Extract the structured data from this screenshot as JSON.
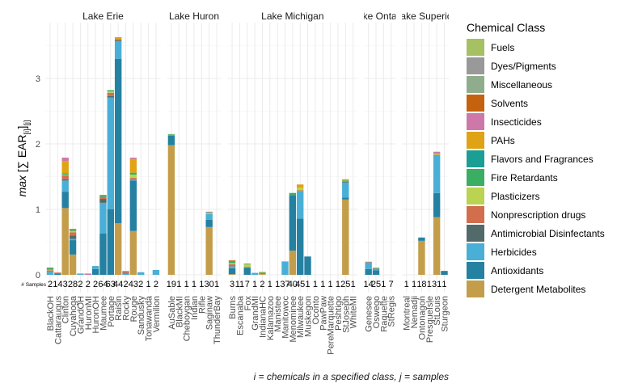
{
  "chart_data": {
    "type": "bar",
    "stacked": true,
    "faceted_by": "lake",
    "title": "",
    "ylabel_parts": {
      "prefix": "max",
      "open": " [∑ EAR",
      "sub_i": "[i]",
      "close": "]",
      "sub_j": "[j]"
    },
    "xlabel": "i = chemicals in a specified class, j = samples",
    "samples_label": "# Samples",
    "ylim": [
      -0.27,
      3.85
    ],
    "yticks": [
      0,
      1,
      2,
      3
    ],
    "grid": true,
    "legend": {
      "title": "Chemical Class",
      "position": "right",
      "entries": [
        {
          "name": "Fuels",
          "color": "#a6c064"
        },
        {
          "name": "Dyes/Pigments",
          "color": "#999999"
        },
        {
          "name": "Miscellaneous",
          "color": "#8fad8d"
        },
        {
          "name": "Solvents",
          "color": "#c5620f"
        },
        {
          "name": "Insecticides",
          "color": "#cd78a8"
        },
        {
          "name": "PAHs",
          "color": "#e0a315"
        },
        {
          "name": "Flavors and Fragrances",
          "color": "#1b9e94"
        },
        {
          "name": "Fire Retardants",
          "color": "#3aae63"
        },
        {
          "name": "Plasticizers",
          "color": "#bad351"
        },
        {
          "name": "Nonprescription drugs",
          "color": "#d26e4e"
        },
        {
          "name": "Antimicrobial Disinfectants",
          "color": "#536a6b"
        },
        {
          "name": "Herbicides",
          "color": "#4aafd7"
        },
        {
          "name": "Antioxidants",
          "color": "#2581a1"
        },
        {
          "name": "Detergent Metabolites",
          "color": "#c49d4b"
        }
      ]
    },
    "facets": [
      {
        "name": "Lake Erie",
        "sites": [
          {
            "site": "BlackOH",
            "samples": "2",
            "values": {
              "Herbicides": 0.045,
              "Nonprescription drugs": 0.025,
              "Plasticizers": 0.01,
              "Fire Retardants": 0.03
            }
          },
          {
            "site": "Cattaraugus",
            "samples": "14",
            "values": {
              "Antioxidants": 0.02,
              "Nonprescription drugs": 0.015
            }
          },
          {
            "site": "Clinton",
            "samples": "3",
            "values": {
              "Detergent Metabolites": 1.02,
              "Antioxidants": 0.25,
              "Herbicides": 0.17,
              "Antimicrobial Disinfectants": 0.02,
              "Nonprescription drugs": 0.06,
              "Plasticizers": 0.01,
              "Fire Retardants": 0.02,
              "PAHs": 0.19,
              "Insecticides": 0.05
            }
          },
          {
            "site": "Cuyahoga",
            "samples": "28",
            "values": {
              "Detergent Metabolites": 0.31,
              "Antioxidants": 0.22,
              "Herbicides": 0.02,
              "Antimicrobial Disinfectants": 0.05,
              "Nonprescription drugs": 0.05,
              "Plasticizers": 0.02,
              "Fire Retardants": 0.015,
              "Solvents": 0.015
            }
          },
          {
            "site": "GrandOH",
            "samples": "2",
            "values": {
              "Herbicides": 0.02
            }
          },
          {
            "site": "HuronMI",
            "samples": "2",
            "values": {
              "Insecticides": 0.02
            }
          },
          {
            "site": "HuronOH",
            "samples": "2",
            "values": {
              "Antioxidants": 0.09,
              "Herbicides": 0.045
            }
          },
          {
            "site": "Maumee",
            "samples": "64",
            "values": {
              "Antioxidants": 0.63,
              "Herbicides": 0.47,
              "Antimicrobial Disinfectants": 0.06,
              "Nonprescription drugs": 0.03,
              "Fire Retardants": 0.03
            }
          },
          {
            "site": "Portage",
            "samples": "63",
            "values": {
              "Antioxidants": 1.0,
              "Herbicides": 1.71,
              "Antimicrobial Disinfectants": 0.02,
              "Nonprescription drugs": 0.05,
              "Plasticizers": 0.02,
              "Fire Retardants": 0.02
            }
          },
          {
            "site": "Raisin",
            "samples": "44",
            "values": {
              "Detergent Metabolites": 0.79,
              "Antioxidants": 2.51,
              "Herbicides": 0.27,
              "Antimicrobial Disinfectants": 0.015,
              "Nonprescription drugs": 0.015,
              "PAHs": 0.03
            }
          },
          {
            "site": "Rocky",
            "samples": "2",
            "values": {
              "Herbicides": 0.02,
              "Antimicrobial Disinfectants": 0.01,
              "Nonprescription drugs": 0.015,
              "Insecticides": 0.015
            }
          },
          {
            "site": "Rouge",
            "samples": "43",
            "values": {
              "Detergent Metabolites": 0.67,
              "Antioxidants": 0.77,
              "Herbicides": 0.01,
              "Nonprescription drugs": 0.03,
              "Plasticizers": 0.05,
              "Fire Retardants": 0.03,
              "PAHs": 0.21,
              "Insecticides": 0.02
            }
          },
          {
            "site": "Sandusky",
            "samples": "2",
            "values": {
              "Herbicides": 0.04
            }
          },
          {
            "site": "Tonawanda",
            "samples": "1",
            "values": {}
          },
          {
            "site": "Vermilion",
            "samples": "2",
            "values": {
              "Herbicides": 0.075
            }
          }
        ]
      },
      {
        "name": "Lake Huron",
        "sites": [
          {
            "site": "AuSable",
            "samples": "19",
            "values": {
              "Detergent Metabolites": 1.98,
              "Antioxidants": 0.15,
              "Plasticizers": 0.01,
              "Fire Retardants": 0.01
            }
          },
          {
            "site": "BlackMI",
            "samples": "1",
            "values": {}
          },
          {
            "site": "Cheboygan",
            "samples": "1",
            "values": {}
          },
          {
            "site": "Indian",
            "samples": "1",
            "values": {}
          },
          {
            "site": "Rifle",
            "samples": "1",
            "values": {}
          },
          {
            "site": "Saginaw",
            "samples": "30",
            "values": {
              "Detergent Metabolites": 0.73,
              "Antioxidants": 0.11,
              "Herbicides": 0.09,
              "Plasticizers": 0.015,
              "Fire Retardants": 0.01,
              "Insecticides": 0.01
            }
          },
          {
            "site": "ThunderBay",
            "samples": "1",
            "values": {}
          }
        ]
      },
      {
        "name": "Lake Michigan",
        "sites": [
          {
            "site": "Burns",
            "samples": "3",
            "values": {
              "Detergent Metabolites": 0.01,
              "Antioxidants": 0.09,
              "Herbicides": 0.03,
              "Nonprescription drugs": 0.03,
              "Plasticizers": 0.02,
              "Fire Retardants": 0.02,
              "Solvents": 0.02
            }
          },
          {
            "site": "Escanaba",
            "samples": "11",
            "values": {}
          },
          {
            "site": "Fox",
            "samples": "7",
            "values": {
              "Antioxidants": 0.11,
              "Nonprescription drugs": 0.01,
              "Plasticizers": 0.04,
              "Flavors and Fragrances": 0.01
            }
          },
          {
            "site": "GrandMI",
            "samples": "1",
            "values": {
              "Herbicides": 0.03
            }
          },
          {
            "site": "IndianaHC",
            "samples": "2",
            "values": {
              "Detergent Metabolites": 0.01,
              "Nonprescription drugs": 0.015,
              "Fire Retardants": 0.01,
              "PAHs": 0.01
            }
          },
          {
            "site": "Kalamazoo",
            "samples": "1",
            "values": {}
          },
          {
            "site": "Manistee",
            "samples": "1",
            "values": {}
          },
          {
            "site": "Manitowoc",
            "samples": "37",
            "values": {
              "Herbicides": 0.2,
              "Plasticizers": 0.01
            }
          },
          {
            "site": "Menominee",
            "samples": "40",
            "values": {
              "Detergent Metabolites": 0.37,
              "Antioxidants": 0.84,
              "Fire Retardants": 0.03,
              "Flavors and Fragrances": 0.01
            }
          },
          {
            "site": "Milwaukee",
            "samples": "45",
            "values": {
              "Antioxidants": 0.86,
              "Herbicides": 0.42,
              "Nonprescription drugs": 0.01,
              "Plasticizers": 0.04,
              "PAHs": 0.05
            }
          },
          {
            "site": "Muskegon",
            "samples": "1",
            "values": {
              "Antioxidants": 0.28
            }
          },
          {
            "site": "Oconto",
            "samples": "1",
            "values": {}
          },
          {
            "site": "PawPaw",
            "samples": "1",
            "values": {}
          },
          {
            "site": "PereMarquette",
            "samples": "1",
            "values": {}
          },
          {
            "site": "Peshtigo",
            "samples": "1",
            "values": {}
          },
          {
            "site": "StJoseph",
            "samples": "25",
            "values": {
              "Detergent Metabolites": 1.15,
              "Antioxidants": 0.03,
              "Herbicides": 0.23,
              "Antimicrobial Disinfectants": 0.01,
              "Nonprescription drugs": 0.01,
              "Fire Retardants": 0.01,
              "PAHs": 0.02
            }
          },
          {
            "site": "WhiteMI",
            "samples": "1",
            "values": {}
          }
        ]
      },
      {
        "name": "Lake Ontario",
        "sites": [
          {
            "site": "Genesee",
            "samples": "14",
            "values": {
              "Antioxidants": 0.09,
              "Herbicides": 0.1,
              "Nonprescription drugs": 0.01
            }
          },
          {
            "site": "Oswego",
            "samples": "25",
            "values": {
              "Antioxidants": 0.07,
              "Herbicides": 0.01,
              "Nonprescription drugs": 0.01,
              "Fire Retardants": 0.01,
              "Insecticides": 0.01
            }
          },
          {
            "site": "Raquette",
            "samples": "1",
            "values": {}
          },
          {
            "site": "StRegis",
            "samples": "7",
            "values": {}
          }
        ]
      },
      {
        "name": "Lake Superior",
        "sites": [
          {
            "site": "Montreal",
            "samples": "1",
            "values": {}
          },
          {
            "site": "Nemadji",
            "samples": "1",
            "values": {}
          },
          {
            "site": "Ontonagon",
            "samples": "18",
            "values": {
              "Detergent Metabolites": 0.52,
              "Antioxidants": 0.05
            }
          },
          {
            "site": "PresqueIsle",
            "samples": "1",
            "values": {}
          },
          {
            "site": "StLouis",
            "samples": "31",
            "values": {
              "Detergent Metabolites": 0.88,
              "Antioxidants": 0.37,
              "Herbicides": 0.57,
              "Nonprescription drugs": 0.015,
              "Plasticizers": 0.015,
              "Fire Retardants": 0.01,
              "Insecticides": 0.02
            }
          },
          {
            "site": "Sturgeon",
            "samples": "1",
            "values": {
              "Antioxidants": 0.06
            }
          }
        ]
      }
    ]
  }
}
